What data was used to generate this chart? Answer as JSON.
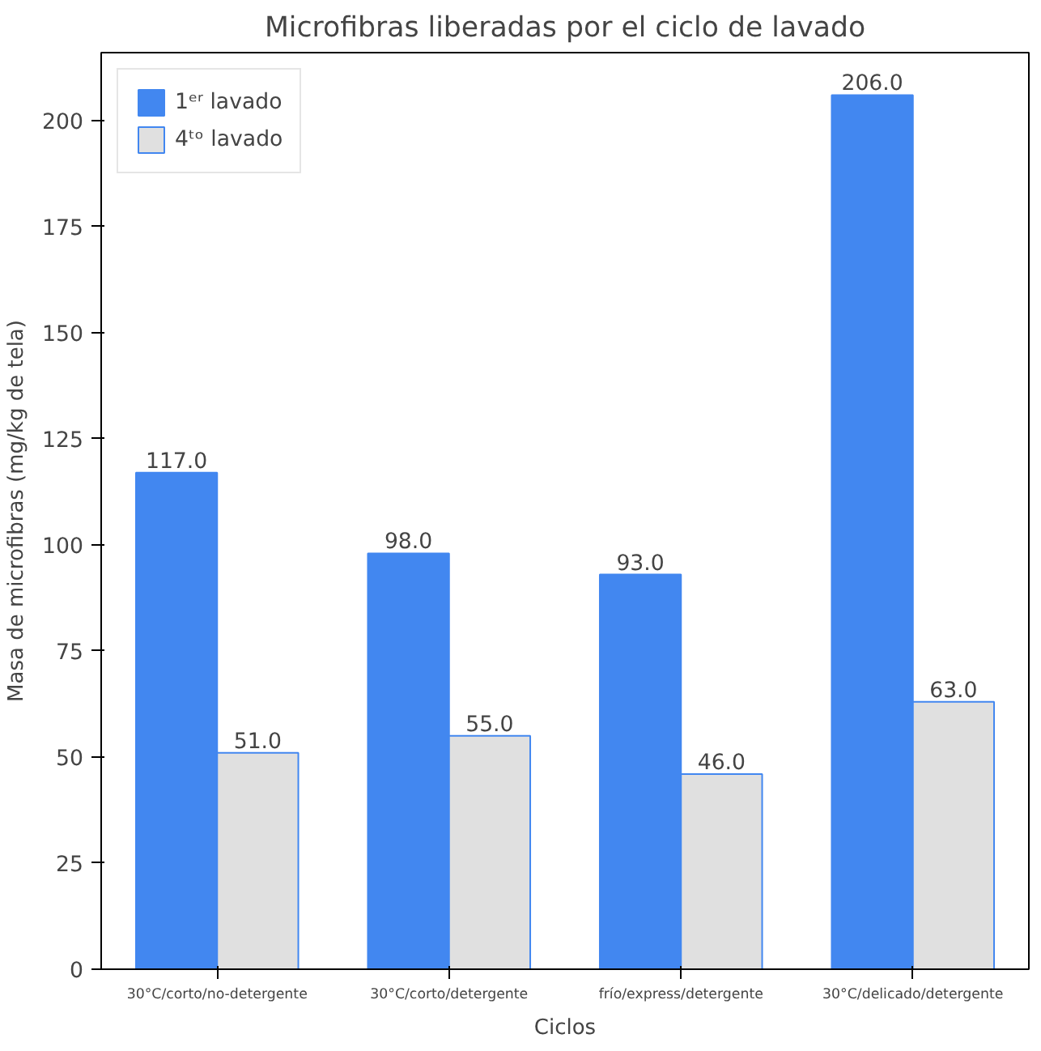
{
  "chart_data": {
    "type": "bar",
    "title": "Microfibras liberadas por el ciclo de lavado",
    "xlabel": "Ciclos",
    "ylabel": "Masa de microfibras (mg/kg de tela)",
    "categories": [
      "30°C/corto/no-detergente",
      "30°C/corto/detergente",
      "frío/express/detergente",
      "30°C/delicado/detergente"
    ],
    "series": [
      {
        "name": "1ᵉʳ lavado",
        "color": "#4287f0",
        "values": [
          117,
          98,
          93,
          206
        ],
        "value_labels": [
          "117.0",
          "98.0",
          "93.0",
          "206.0"
        ]
      },
      {
        "name": "4ᵗᵒ lavado",
        "color": "#e0e0e0",
        "values": [
          51,
          55,
          46,
          63
        ],
        "value_labels": [
          "51.0",
          "55.0",
          "46.0",
          "63.0"
        ]
      }
    ],
    "ylim": [
      0,
      216
    ],
    "yticks": [
      0,
      25,
      50,
      75,
      100,
      125,
      150,
      175,
      200
    ],
    "grid": false,
    "legend": "top left"
  }
}
